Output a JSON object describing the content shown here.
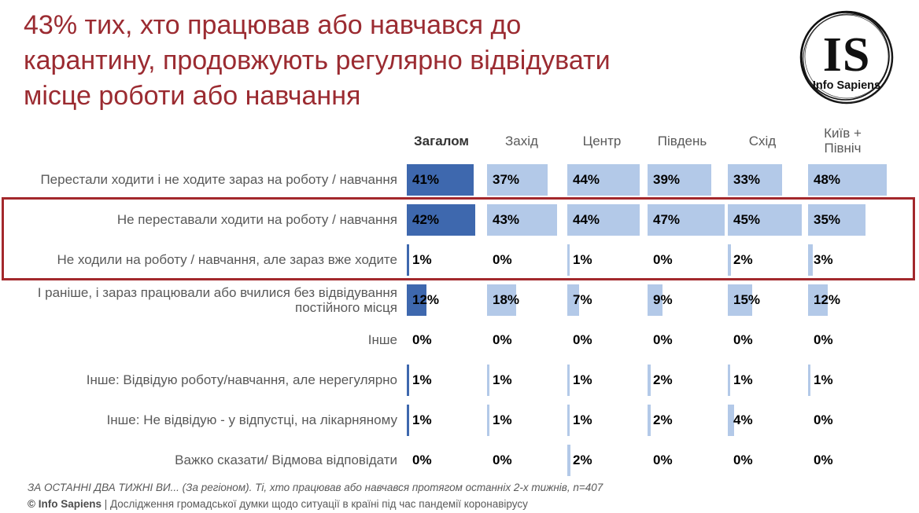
{
  "title": {
    "lines": [
      "43% тих, хто працював або навчався до",
      "карантину, продовжують регулярно відвідувати",
      "місце роботи або навчання"
    ]
  },
  "logo": {
    "monogram": "IS",
    "name": "Info Sapiens"
  },
  "chart_data": {
    "type": "bar",
    "orientation": "horizontal",
    "value_unit": "%",
    "axis_max": 50,
    "legend_position": "none",
    "grid": false,
    "columns": [
      "Загалом",
      "Захід",
      "Центр",
      "Південь",
      "Схід",
      "Київ + Північ"
    ],
    "rows": [
      {
        "label": "Перестали ходити і не ходите зараз на роботу / навчання",
        "values": [
          41,
          37,
          44,
          39,
          33,
          48
        ],
        "highlighted": false
      },
      {
        "label": "Не переставали ходити на роботу / навчання",
        "values": [
          42,
          43,
          44,
          47,
          45,
          35
        ],
        "highlighted": true
      },
      {
        "label": "Не ходили на роботу / навчання, але зараз вже ходите",
        "values": [
          1,
          0,
          1,
          0,
          2,
          3
        ],
        "highlighted": true
      },
      {
        "label": "І раніше, і зараз працювали або вчилися без відвідування постійного місця",
        "values": [
          12,
          18,
          7,
          9,
          15,
          12
        ],
        "highlighted": false
      },
      {
        "label": "Інше",
        "values": [
          0,
          0,
          0,
          0,
          0,
          0
        ],
        "highlighted": false
      },
      {
        "label": "Інше: Відвідую роботу/навчання, але нерегулярно",
        "values": [
          1,
          1,
          1,
          2,
          1,
          1
        ],
        "highlighted": false
      },
      {
        "label": "Інше: Не відвідую - у відпустці, на лікарняному",
        "values": [
          1,
          1,
          1,
          2,
          4,
          0
        ],
        "highlighted": false
      },
      {
        "label": "Важко сказати/ Відмова відповідати",
        "values": [
          0,
          0,
          2,
          0,
          0,
          0
        ],
        "highlighted": false
      }
    ],
    "colors": {
      "overall_bar": "#3E68AE",
      "region_bar": "#B3C9E8",
      "highlight_border": "#A3282C",
      "title_text": "#9B2B31"
    }
  },
  "footnotes": {
    "source_line": "ЗА ОСТАННІ ДВА ТИЖНІ ВИ... (За регіоном). Ті, хто працював або навчався протягом останніх 2-х тижнів, n=407",
    "copyright_bold": "© Info Sapiens",
    "copyright_rest": " | Дослідження громадської думки щодо ситуації в країні під час пандемії коронавірусу"
  }
}
